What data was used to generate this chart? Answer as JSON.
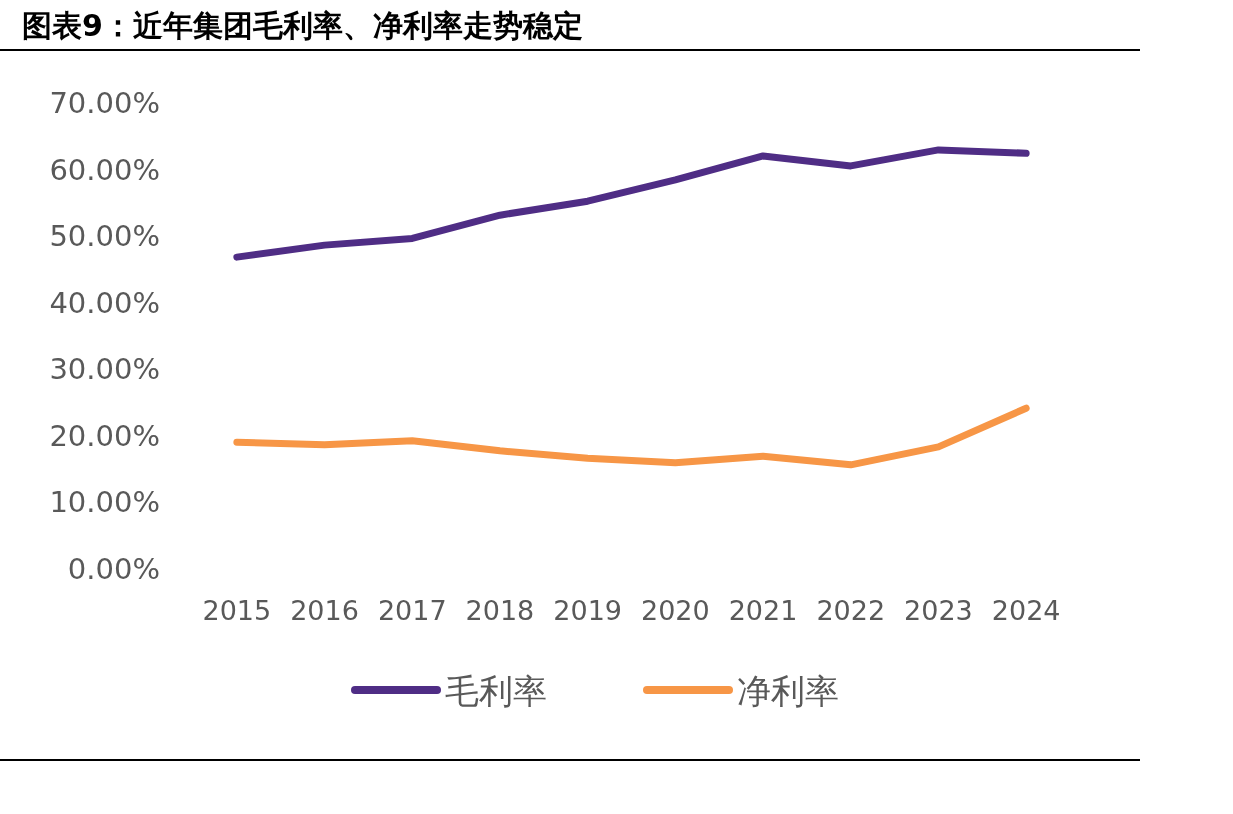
{
  "chart_data": {
    "type": "line",
    "title": "图表9：近年集团毛利率、净利率走势稳定",
    "categories": [
      "2015",
      "2016",
      "2017",
      "2018",
      "2019",
      "2020",
      "2021",
      "2022",
      "2023",
      "2024"
    ],
    "series": [
      {
        "name": "毛利率",
        "color": "#4f2d85",
        "values": [
          46.7,
          48.5,
          49.5,
          53.0,
          55.1,
          58.3,
          61.9,
          60.4,
          62.8,
          62.3
        ]
      },
      {
        "name": "净利率",
        "color": "#f79646",
        "values": [
          18.9,
          18.5,
          19.1,
          17.6,
          16.5,
          15.8,
          16.8,
          15.5,
          18.2,
          24.0
        ]
      }
    ],
    "ylim": [
      0,
      70
    ],
    "yticks": [
      {
        "value": 0,
        "label": "0.00%"
      },
      {
        "value": 10,
        "label": "10.00%"
      },
      {
        "value": 20,
        "label": "20.00%"
      },
      {
        "value": 30,
        "label": "30.00%"
      },
      {
        "value": 40,
        "label": "40.00%"
      },
      {
        "value": 50,
        "label": "50.00%"
      },
      {
        "value": 60,
        "label": "60.00%"
      },
      {
        "value": 70,
        "label": "70.00%"
      }
    ],
    "legend": "bottom"
  }
}
